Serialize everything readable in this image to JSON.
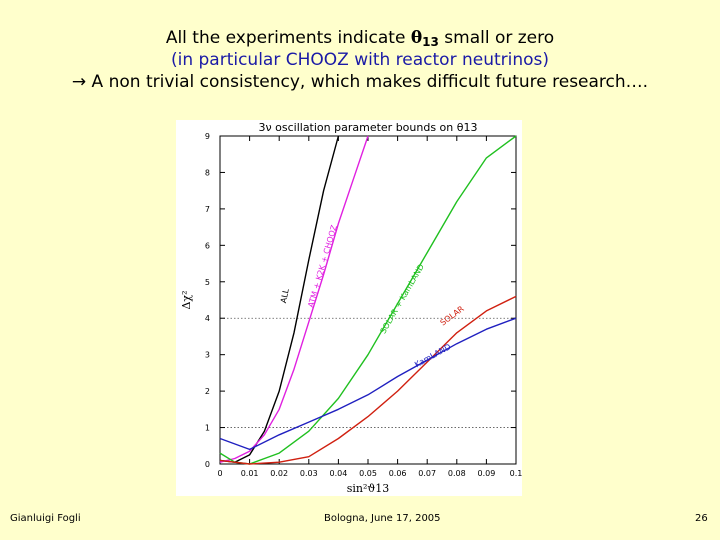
{
  "heading": {
    "line1_pre": "All the experiments indicate ",
    "theta": "θ",
    "theta_sub": "13",
    "line1_post": " small or zero",
    "line2": "(in particular CHOOZ with reactor neutrinos)",
    "arrow": "→",
    "line3": " A non trivial consistency, which makes difficult future research…."
  },
  "footer": {
    "author": "Gianluigi Fogli",
    "event": "Bologna, June 17, 2005",
    "page": "26"
  },
  "chart_data": {
    "type": "line",
    "title": "3ν oscillation parameter bounds on θ13",
    "xlabel": "sin²ϑ13",
    "ylabel": "Δχ²",
    "xlim": [
      0,
      0.1
    ],
    "ylim": [
      0,
      9
    ],
    "xticks": [
      "0",
      "0.01",
      "0.02",
      "0.03",
      "0.04",
      "0.05",
      "0.06",
      "0.07",
      "0.08",
      "0.09",
      "0.1"
    ],
    "yticks": [
      "0",
      "1",
      "2",
      "3",
      "4",
      "5",
      "6",
      "7",
      "8",
      "9"
    ],
    "reference_lines": [
      1,
      4
    ],
    "grid": false,
    "colors": {
      "all": "#000000",
      "atm": "#e020e0",
      "solar_kamland": "#20c020",
      "solar": "#d02010",
      "kamland": "#2020c0"
    },
    "series": [
      {
        "name": "ALL",
        "color": "#000000",
        "x": [
          0,
          0.005,
          0.01,
          0.015,
          0.02,
          0.025,
          0.03,
          0.035,
          0.04
        ],
        "y": [
          0.1,
          0.05,
          0.25,
          0.9,
          2.0,
          3.6,
          5.6,
          7.5,
          9.0
        ]
      },
      {
        "name": "ATM + K2K + CHOOZ",
        "color": "#e020e0",
        "x": [
          0,
          0.005,
          0.01,
          0.015,
          0.02,
          0.025,
          0.03,
          0.035,
          0.04,
          0.045,
          0.05
        ],
        "y": [
          0.05,
          0.15,
          0.35,
          0.8,
          1.5,
          2.6,
          3.9,
          5.2,
          6.6,
          7.8,
          9.0
        ]
      },
      {
        "name": "SOLAR + KamLAND",
        "color": "#20c020",
        "x": [
          0,
          0.005,
          0.01,
          0.02,
          0.03,
          0.04,
          0.05,
          0.06,
          0.07,
          0.08,
          0.09,
          0.1
        ],
        "y": [
          0.3,
          0.05,
          0.0,
          0.3,
          0.9,
          1.8,
          3.0,
          4.4,
          5.8,
          7.2,
          8.4,
          9.0
        ]
      },
      {
        "name": "SOLAR",
        "color": "#d02010",
        "x": [
          0,
          0.01,
          0.02,
          0.03,
          0.04,
          0.05,
          0.06,
          0.07,
          0.08,
          0.09,
          0.1
        ],
        "y": [
          0.1,
          0.0,
          0.05,
          0.2,
          0.7,
          1.3,
          2.0,
          2.8,
          3.6,
          4.2,
          4.6
        ]
      },
      {
        "name": "KamLAND",
        "color": "#2020c0",
        "x": [
          0,
          0.01,
          0.02,
          0.03,
          0.04,
          0.05,
          0.06,
          0.07,
          0.08,
          0.09,
          0.1
        ],
        "y": [
          0.7,
          0.4,
          0.8,
          1.15,
          1.5,
          1.9,
          2.4,
          2.85,
          3.3,
          3.7,
          4.0
        ]
      }
    ]
  }
}
